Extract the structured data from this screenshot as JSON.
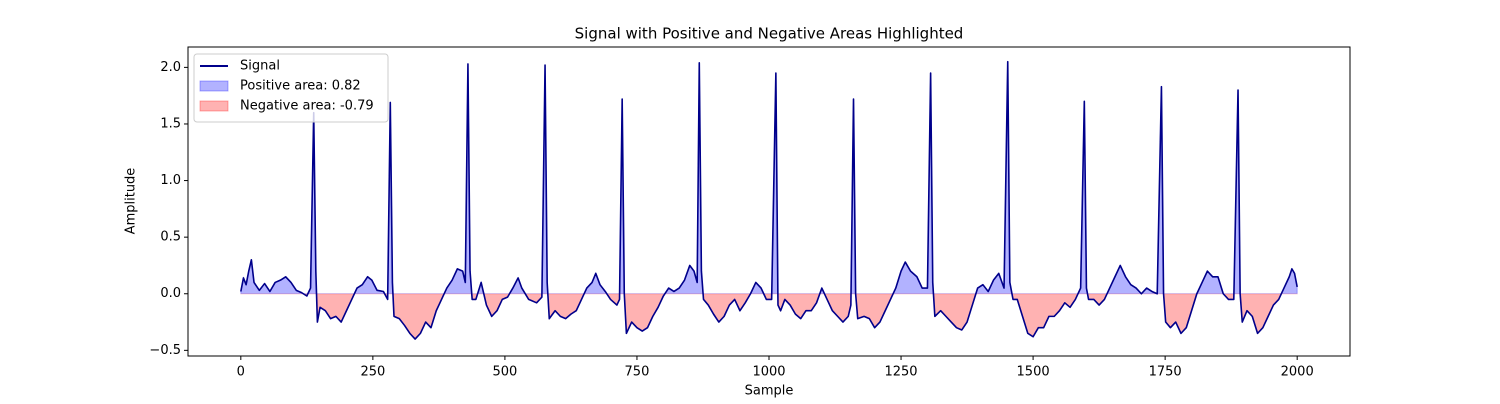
{
  "chart_data": {
    "type": "line",
    "title": "Signal with Positive and Negative Areas Highlighted",
    "x_label": "Sample",
    "y_label": "Amplitude",
    "x": [
      0,
      5,
      10,
      15,
      20,
      25,
      35,
      45,
      55,
      65,
      75,
      85,
      95,
      105,
      115,
      125,
      132,
      138,
      142,
      145,
      150,
      160,
      170,
      180,
      190,
      200,
      210,
      220,
      230,
      240,
      248,
      258,
      270,
      278,
      283,
      287,
      290,
      300,
      310,
      320,
      330,
      340,
      350,
      360,
      370,
      380,
      390,
      400,
      410,
      420,
      425,
      430,
      434,
      438,
      445,
      455,
      465,
      475,
      485,
      495,
      505,
      515,
      525,
      532,
      545,
      560,
      570,
      576,
      580,
      584,
      595,
      605,
      615,
      625,
      635,
      645,
      655,
      665,
      672,
      680,
      690,
      700,
      712,
      717,
      722,
      726,
      730,
      740,
      750,
      760,
      770,
      780,
      790,
      800,
      810,
      820,
      830,
      840,
      850,
      858,
      864,
      868,
      872,
      876,
      885,
      895,
      905,
      915,
      925,
      935,
      945,
      955,
      965,
      975,
      985,
      995,
      1005,
      1013,
      1017,
      1022,
      1030,
      1040,
      1050,
      1060,
      1070,
      1080,
      1090,
      1100,
      1110,
      1120,
      1130,
      1140,
      1150,
      1155,
      1160,
      1164,
      1168,
      1180,
      1190,
      1200,
      1210,
      1220,
      1230,
      1240,
      1250,
      1258,
      1268,
      1280,
      1290,
      1300,
      1306,
      1310,
      1314,
      1325,
      1335,
      1345,
      1355,
      1365,
      1375,
      1385,
      1395,
      1405,
      1415,
      1425,
      1435,
      1445,
      1452,
      1456,
      1462,
      1470,
      1480,
      1490,
      1500,
      1510,
      1520,
      1530,
      1540,
      1550,
      1560,
      1570,
      1580,
      1590,
      1597,
      1601,
      1605,
      1615,
      1625,
      1635,
      1645,
      1655,
      1665,
      1675,
      1685,
      1695,
      1705,
      1715,
      1725,
      1735,
      1743,
      1747,
      1751,
      1760,
      1770,
      1780,
      1790,
      1800,
      1810,
      1820,
      1830,
      1840,
      1850,
      1860,
      1870,
      1880,
      1888,
      1892,
      1896,
      1905,
      1915,
      1925,
      1935,
      1945,
      1955,
      1965,
      1975,
      1985,
      1990,
      1995,
      2000
    ],
    "series": [
      {
        "name": "Signal",
        "color": "#00008b",
        "values": [
          0.02,
          0.14,
          0.08,
          0.2,
          0.3,
          0.1,
          0.03,
          0.09,
          0.02,
          0.1,
          0.12,
          0.15,
          0.1,
          0.03,
          0.01,
          -0.02,
          0.05,
          1.6,
          0.2,
          -0.25,
          -0.12,
          -0.15,
          -0.22,
          -0.2,
          -0.25,
          -0.15,
          -0.05,
          0.05,
          0.08,
          0.15,
          0.12,
          0.03,
          0.02,
          -0.05,
          1.69,
          0.1,
          -0.2,
          -0.22,
          -0.28,
          -0.35,
          -0.4,
          -0.35,
          -0.25,
          -0.3,
          -0.15,
          -0.05,
          0.05,
          0.12,
          0.22,
          0.2,
          0.1,
          2.03,
          0.2,
          -0.05,
          -0.05,
          0.1,
          -0.1,
          -0.2,
          -0.15,
          -0.05,
          -0.03,
          0.05,
          0.14,
          0.05,
          -0.05,
          -0.08,
          -0.03,
          2.02,
          0.1,
          -0.22,
          -0.15,
          -0.2,
          -0.22,
          -0.18,
          -0.15,
          -0.05,
          0.05,
          0.1,
          0.18,
          0.08,
          0.02,
          -0.05,
          -0.1,
          -0.05,
          1.72,
          0.0,
          -0.35,
          -0.25,
          -0.3,
          -0.33,
          -0.3,
          -0.2,
          -0.12,
          -0.02,
          0.05,
          0.02,
          0.05,
          0.12,
          0.25,
          0.2,
          0.1,
          2.04,
          0.2,
          -0.05,
          -0.1,
          -0.18,
          -0.25,
          -0.2,
          -0.1,
          -0.05,
          -0.15,
          -0.08,
          0.0,
          0.1,
          0.05,
          -0.05,
          -0.05,
          1.95,
          -0.1,
          -0.15,
          -0.05,
          -0.1,
          -0.18,
          -0.22,
          -0.15,
          -0.15,
          -0.08,
          0.05,
          -0.05,
          -0.15,
          -0.2,
          -0.25,
          -0.2,
          -0.1,
          1.72,
          0.0,
          -0.22,
          -0.2,
          -0.22,
          -0.3,
          -0.25,
          -0.15,
          -0.05,
          0.05,
          0.2,
          0.28,
          0.2,
          0.15,
          0.05,
          0.05,
          1.95,
          0.1,
          -0.2,
          -0.15,
          -0.2,
          -0.25,
          -0.3,
          -0.32,
          -0.25,
          -0.1,
          0.05,
          0.08,
          0.02,
          0.12,
          0.18,
          0.05,
          2.05,
          0.1,
          -0.05,
          -0.05,
          -0.2,
          -0.35,
          -0.38,
          -0.3,
          -0.3,
          -0.2,
          -0.2,
          -0.15,
          -0.08,
          -0.12,
          -0.05,
          0.05,
          1.7,
          0.05,
          -0.05,
          -0.05,
          -0.1,
          -0.05,
          0.05,
          0.15,
          0.25,
          0.15,
          0.08,
          0.05,
          0.0,
          0.05,
          0.02,
          0.0,
          1.83,
          0.0,
          -0.25,
          -0.3,
          -0.25,
          -0.35,
          -0.3,
          -0.15,
          0.0,
          0.1,
          0.2,
          0.15,
          0.15,
          0.0,
          -0.05,
          -0.05,
          1.8,
          0.0,
          -0.25,
          -0.15,
          -0.2,
          -0.35,
          -0.3,
          -0.2,
          -0.1,
          -0.05,
          0.05,
          0.15,
          0.22,
          0.18,
          0.06
        ]
      }
    ],
    "fills": [
      {
        "name": "Positive area: 0.82",
        "color": "#0000ff",
        "where": "above"
      },
      {
        "name": "Negative area: -0.79",
        "color": "#ff0000",
        "where": "below"
      }
    ],
    "fill_alpha": 0.3,
    "xlim": [
      -100,
      2100
    ],
    "xticks": [
      0,
      250,
      500,
      750,
      1000,
      1250,
      1500,
      1750,
      2000
    ],
    "ylim": [
      -0.55,
      2.18
    ],
    "yticks": [
      {
        "value": -0.5,
        "label": "−0.5"
      },
      {
        "value": 0,
        "label": "0.0"
      },
      0.5,
      {
        "value": 1,
        "label": "1.0"
      },
      1.5,
      {
        "value": 2,
        "label": "2.0"
      }
    ],
    "legend": "upper left",
    "grid": false
  }
}
